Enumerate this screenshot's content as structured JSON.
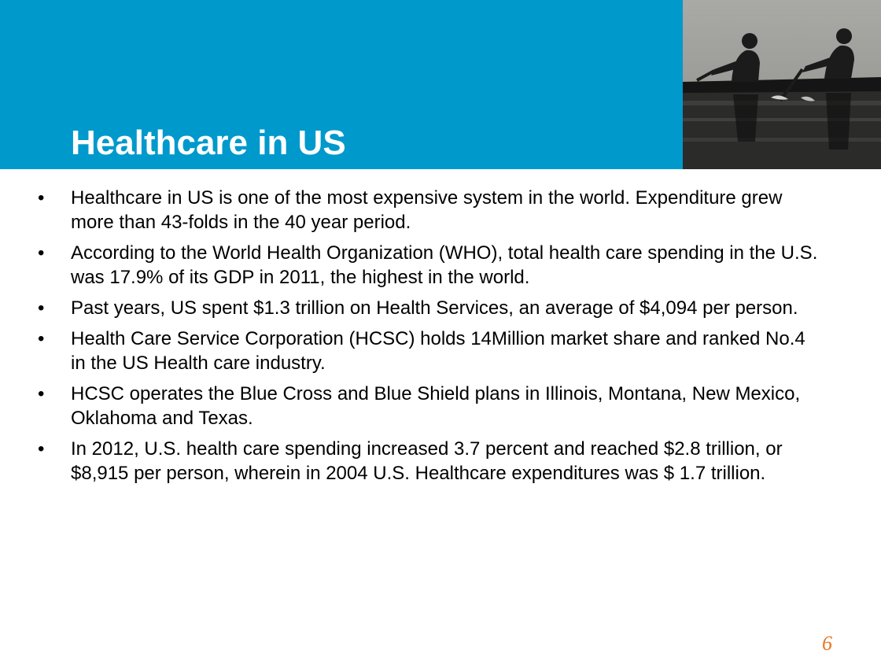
{
  "slide": {
    "title": "Healthcare in US",
    "page_number": "6",
    "bullet_symbol": "•",
    "colors": {
      "header_band": "#0099cc",
      "title_text": "#ffffff",
      "page_number": "#e87722"
    },
    "photo": {
      "icon": "rowers-on-water-photo"
    },
    "bullets": [
      "Healthcare in US is one of the most expensive system in the world. Expenditure grew more than 43-folds in the 40 year period.",
      "According to the World Health Organization (WHO), total health care spending in the U.S. was 17.9% of its GDP in 2011, the highest in the world.",
      "Past years, US spent $1.3 trillion on Health Services, an average of $4,094 per person.",
      "Health Care Service Corporation (HCSC) holds 14Million market share and ranked No.4 in the US Health care industry.",
      "HCSC operates the Blue Cross and Blue Shield plans in Illinois, Montana, New Mexico, Oklahoma and Texas.",
      "In 2012, U.S. health care spending increased 3.7 percent and reached $2.8 trillion, or $8,915 per person, wherein in 2004 U.S. Healthcare expenditures was $ 1.7 trillion."
    ]
  }
}
